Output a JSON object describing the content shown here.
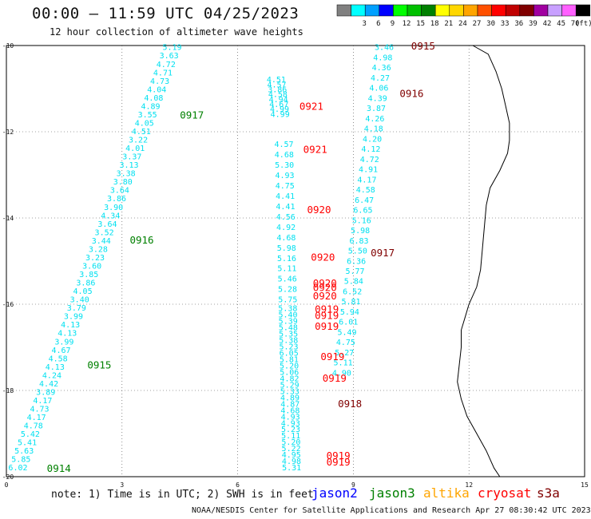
{
  "header": {
    "title": "00:00 – 11:59 UTC 04/25/2023",
    "subtitle": "12 hour collection of altimeter wave heights"
  },
  "legend": {
    "unit": "(ft)",
    "bins": [
      {
        "label": "",
        "color": "#808080"
      },
      {
        "label": "3",
        "color": "#00ffff"
      },
      {
        "label": "6",
        "color": "#00a0ff"
      },
      {
        "label": "9",
        "color": "#0000ff"
      },
      {
        "label": "12",
        "color": "#00ff00"
      },
      {
        "label": "15",
        "color": "#00c000"
      },
      {
        "label": "18",
        "color": "#008000"
      },
      {
        "label": "21",
        "color": "#ffff00"
      },
      {
        "label": "24",
        "color": "#ffd700"
      },
      {
        "label": "27",
        "color": "#ffa500"
      },
      {
        "label": "30",
        "color": "#ff5000"
      },
      {
        "label": "33",
        "color": "#ff0000"
      },
      {
        "label": "36",
        "color": "#c00000"
      },
      {
        "label": "39",
        "color": "#800000"
      },
      {
        "label": "42",
        "color": "#a000a0"
      },
      {
        "label": "45",
        "color": "#c8a0ff"
      },
      {
        "label": "70",
        "color": "#ff60ff"
      },
      {
        "label": "",
        "color": "#000000"
      }
    ]
  },
  "map": {
    "x_ticks": [
      "0",
      "3",
      "6",
      "9",
      "12",
      "15"
    ],
    "y_ticks": [
      "-10",
      "-12",
      "-14",
      "-16",
      "-18",
      "-20"
    ],
    "coastline": [
      [
        12.1,
        -10
      ],
      [
        12.5,
        -10.2
      ],
      [
        12.7,
        -10.6
      ],
      [
        12.85,
        -11.0
      ],
      [
        12.95,
        -11.4
      ],
      [
        13.05,
        -11.8
      ],
      [
        13.05,
        -12.2
      ],
      [
        13.0,
        -12.5
      ],
      [
        12.8,
        -12.9
      ],
      [
        12.55,
        -13.3
      ],
      [
        12.45,
        -13.7
      ],
      [
        12.4,
        -14.2
      ],
      [
        12.35,
        -14.7
      ],
      [
        12.3,
        -15.2
      ],
      [
        12.2,
        -15.6
      ],
      [
        12.0,
        -16.0
      ],
      [
        11.9,
        -16.3
      ],
      [
        11.8,
        -16.6
      ],
      [
        11.8,
        -17.0
      ],
      [
        11.75,
        -17.4
      ],
      [
        11.7,
        -17.8
      ],
      [
        11.8,
        -18.2
      ],
      [
        11.95,
        -18.6
      ],
      [
        12.2,
        -19.0
      ],
      [
        12.45,
        -19.4
      ],
      [
        12.65,
        -19.8
      ],
      [
        12.8,
        -20.0
      ]
    ],
    "satellites": [
      {
        "name": "jason2",
        "color": "#0000ff"
      },
      {
        "name": "jason3",
        "color": "#008000"
      },
      {
        "name": "altika",
        "color": "#ffa500"
      },
      {
        "name": "cryosat",
        "color": "#ff0000"
      },
      {
        "name": "s3a",
        "color": "#800000"
      }
    ],
    "tracks": [
      {
        "start": [
          4.3,
          -10.05
        ],
        "end": [
          0.3,
          -19.8
        ],
        "values": [
          "5.19",
          "3.63",
          "4.72",
          "4.71",
          "4.73",
          "4.04",
          "4.08",
          "4.89",
          "3.55",
          "4.05",
          "4.51",
          "3.22",
          "4.01",
          "3.37",
          "3.13",
          "3.38",
          "3.80",
          "3.64",
          "3.86",
          "3.90",
          "4.34",
          "3.64",
          "3.52",
          "3.44",
          "3.28",
          "3.23",
          "3.60",
          "3.85",
          "3.86",
          "4.05",
          "3.40",
          "3.79",
          "3.99",
          "4.13",
          "4.13",
          "3.99",
          "4.67",
          "4.58",
          "4.13",
          "4.24",
          "4.42",
          "3.89",
          "4.17",
          "4.73",
          "4.17",
          "4.78",
          "5.42",
          "5.41",
          "5.63",
          "5.85",
          "6.02"
        ]
      },
      {
        "start": [
          9.8,
          -10.05
        ],
        "end": [
          8.7,
          -17.6
        ],
        "values": [
          "3.46",
          "4.98",
          "4.36",
          "4.27",
          "4.06",
          "4.39",
          "3.87",
          "4.26",
          "4.18",
          "4.20",
          "4.12",
          "4.72",
          "4.91",
          "4.17",
          "4.58",
          "6.47",
          "6.65",
          "5.16",
          "5.98",
          "6.83",
          "5.50",
          "6.36",
          "5.77",
          "5.84",
          "6.52",
          "5.81",
          "5.94",
          "6.01",
          "5.49",
          "4.75",
          "5.27",
          "5.11",
          "4.90"
        ]
      },
      {
        "start": [
          7.0,
          -10.8
        ],
        "end": [
          7.1,
          -11.6
        ],
        "values": [
          "4.51",
          "4.57",
          "3.86",
          "4.58",
          "4.94",
          "4.67",
          "4.99",
          "4.99"
        ]
      },
      {
        "start": [
          7.2,
          -12.3
        ],
        "end": [
          7.3,
          -15.9
        ],
        "values": [
          "4.57",
          "4.68",
          "5.30",
          "4.93",
          "4.75",
          "4.41",
          "4.41",
          "4.56",
          "4.92",
          "4.68",
          "5.98",
          "5.16",
          "5.11",
          "5.46",
          "5.28",
          "5.75"
        ]
      },
      {
        "start": [
          7.3,
          -16.1
        ],
        "end": [
          7.4,
          -19.8
        ],
        "values": [
          "5.38",
          "5.40",
          "5.39",
          "5.48",
          "5.35",
          "5.38",
          "5.23",
          "6.05",
          "5.81",
          "5.20",
          "5.06",
          "4.82",
          "5.29",
          "5.33",
          "4.89",
          "4.87",
          "4.68",
          "4.93",
          "4.93",
          "5.23",
          "5.11",
          "5.20",
          "5.22",
          "4.95",
          "4.98",
          "5.31"
        ]
      }
    ],
    "time_labels": [
      {
        "text": "0915",
        "x": 10.5,
        "y": -10.0,
        "sat": "s3a"
      },
      {
        "text": "0916",
        "x": 10.2,
        "y": -11.1,
        "sat": "s3a"
      },
      {
        "text": "0921",
        "x": 7.6,
        "y": -11.4,
        "sat": "cryosat"
      },
      {
        "text": "0917",
        "x": 4.5,
        "y": -11.6,
        "sat": "jason3"
      },
      {
        "text": "0921",
        "x": 7.7,
        "y": -12.4,
        "sat": "cryosat"
      },
      {
        "text": "0920",
        "x": 7.8,
        "y": -13.8,
        "sat": "cryosat"
      },
      {
        "text": "0916",
        "x": 3.2,
        "y": -14.5,
        "sat": "jason3"
      },
      {
        "text": "0917",
        "x": 9.45,
        "y": -14.8,
        "sat": "s3a"
      },
      {
        "text": "0920",
        "x": 7.9,
        "y": -14.9,
        "sat": "cryosat"
      },
      {
        "text": "0920",
        "x": 7.95,
        "y": -15.5,
        "sat": "cryosat"
      },
      {
        "text": "0920",
        "x": 7.95,
        "y": -15.6,
        "sat": "cryosat"
      },
      {
        "text": "0920",
        "x": 7.95,
        "y": -15.8,
        "sat": "cryosat"
      },
      {
        "text": "0919",
        "x": 8.0,
        "y": -16.1,
        "sat": "cryosat"
      },
      {
        "text": "0919",
        "x": 8.0,
        "y": -16.25,
        "sat": "cryosat"
      },
      {
        "text": "0919",
        "x": 8.0,
        "y": -16.5,
        "sat": "cryosat"
      },
      {
        "text": "0919",
        "x": 8.15,
        "y": -17.2,
        "sat": "cryosat"
      },
      {
        "text": "0915",
        "x": 2.1,
        "y": -17.4,
        "sat": "jason3"
      },
      {
        "text": "0919",
        "x": 8.2,
        "y": -17.7,
        "sat": "cryosat"
      },
      {
        "text": "0918",
        "x": 8.6,
        "y": -18.3,
        "sat": "s3a"
      },
      {
        "text": "0919",
        "x": 8.3,
        "y": -19.5,
        "sat": "cryosat"
      },
      {
        "text": "0919",
        "x": 8.3,
        "y": -19.65,
        "sat": "cryosat"
      },
      {
        "text": "0914",
        "x": 1.05,
        "y": -19.8,
        "sat": "jason3"
      }
    ]
  },
  "footer": {
    "note": "note: 1) Time is in UTC; 2) SWH is in feet",
    "credit": "NOAA/NESDIS Center for Satellite Applications and Research   Apr 27 08:30:42 UTC 2023"
  }
}
